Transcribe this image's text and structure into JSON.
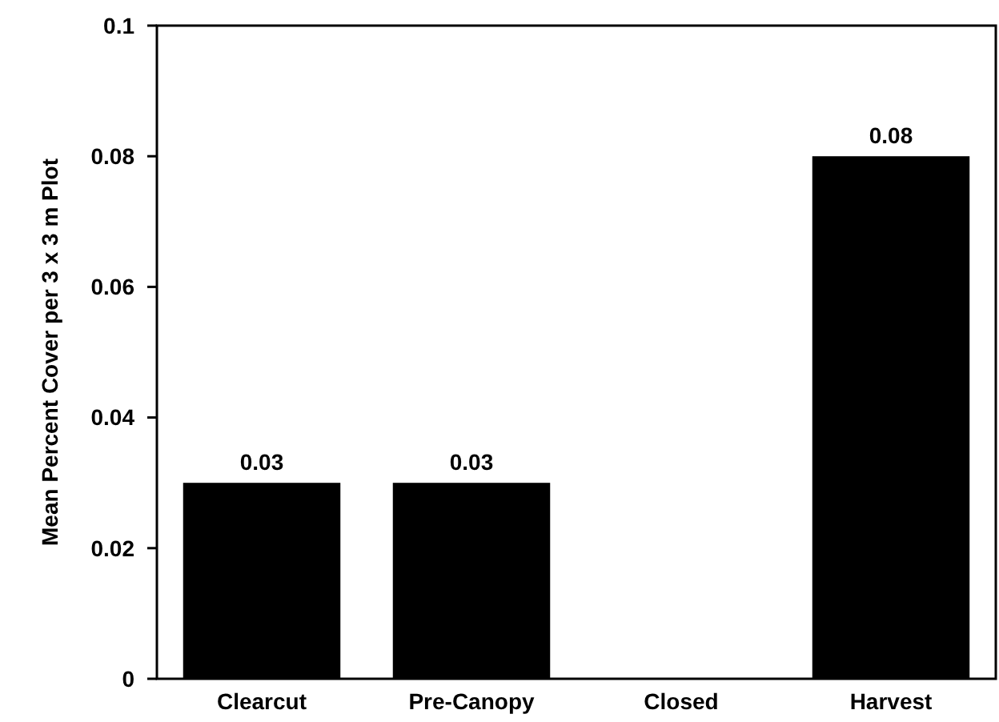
{
  "chart_data": {
    "type": "bar",
    "ylabel": "Mean Percent Cover per 3 x 3 m Plot",
    "categories": [
      "Clearcut",
      "Pre-Canopy",
      "Closed",
      "Harvest"
    ],
    "values": [
      0.03,
      0.03,
      0,
      0.08
    ],
    "value_labels": [
      "0.03",
      "0.03",
      null,
      "0.08"
    ],
    "color": "#000000",
    "ylim": [
      0,
      0.1
    ],
    "yticks": [
      {
        "value": 0,
        "label": "0"
      },
      0.02,
      0.04,
      0.06,
      0.08,
      0.1
    ],
    "grid": false
  }
}
